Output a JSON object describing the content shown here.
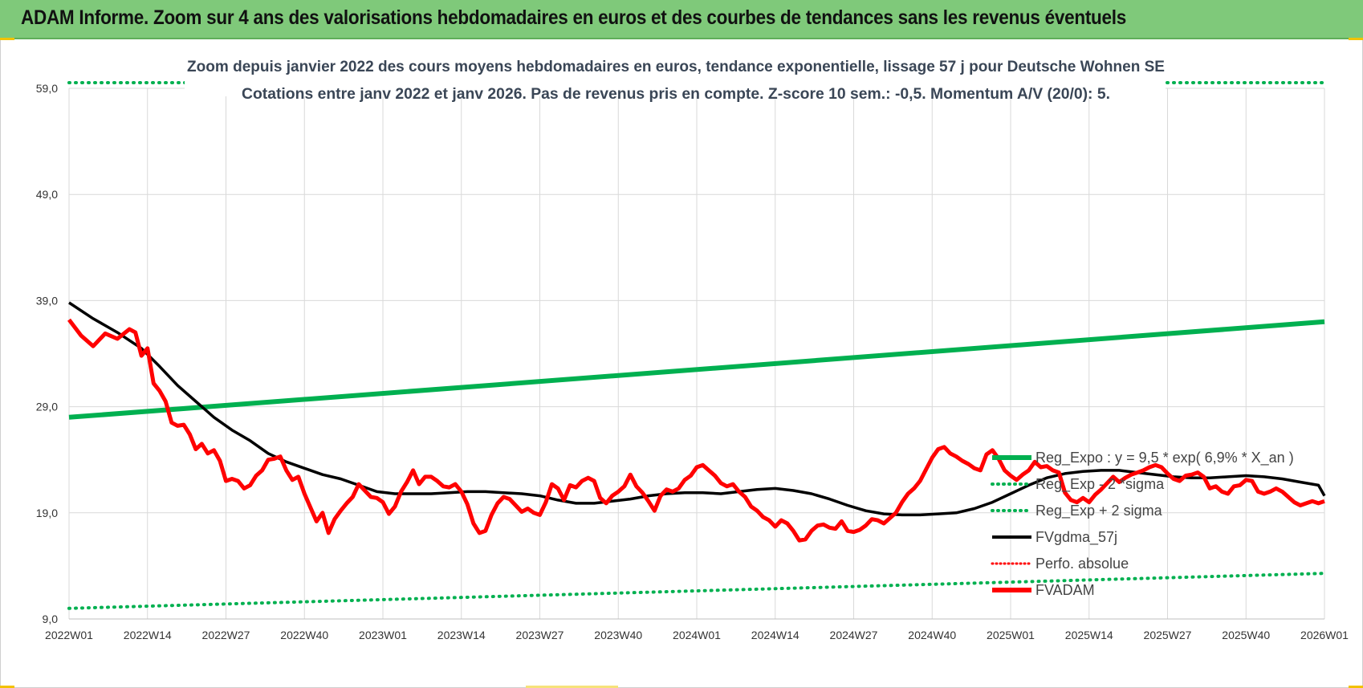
{
  "banner": {
    "title": "ADAM Informe. Zoom sur 4 ans des valorisations hebdomadaires en euros et des courbes de tendances sans les revenus éventuels"
  },
  "colors": {
    "banner_bg": "#7fc97a",
    "reg_expo": "#00b050",
    "fvgdma": "#000000",
    "fvadam": "#ff0000",
    "perfo": "#ff0000",
    "grid": "#d9d9d9"
  },
  "chart_data": {
    "type": "line",
    "title_line1": "Zoom depuis janvier 2022 des cours moyens hebdomadaires en euros, tendance exponentielle, lissage 57 j pour Deutsche Wohnen SE",
    "title_line2": "Cotations entre janv 2022 et janv 2026. Pas de revenus pris en compte. Z-score 10 sem.: -0,5. Momentum A/V (20/0): 5.",
    "ylim": [
      9,
      59
    ],
    "y_ticks": [
      "9,0",
      "19,0",
      "29,0",
      "39,0",
      "49,0",
      "59,0"
    ],
    "y_tick_values": [
      9,
      19,
      29,
      39,
      49,
      59
    ],
    "x_ticks": [
      "2022W01",
      "2022W14",
      "2022W27",
      "2022W40",
      "2023W01",
      "2023W14",
      "2023W27",
      "2023W40",
      "2024W01",
      "2024W14",
      "2024W27",
      "2024W40",
      "2025W01",
      "2025W14",
      "2025W27",
      "2025W40",
      "2026W01"
    ],
    "x_tick_weeks": [
      0,
      13,
      26,
      39,
      52,
      65,
      78,
      91,
      104,
      117,
      130,
      143,
      156,
      169,
      182,
      195,
      208
    ],
    "x_max_week": 208,
    "legend": [
      {
        "name": "Reg_Expo : y = 9,5 * exp( 6,9% *  X_an )",
        "style": "solid-green"
      },
      {
        "name": "Reg_Exp - 2 *sigma",
        "style": "dotted-green"
      },
      {
        "name": "Reg_Exp + 2 sigma",
        "style": "dotted-green"
      },
      {
        "name": "FVgdma_57j",
        "style": "solid-black"
      },
      {
        "name": "Perfo. absolue",
        "style": "dotted-red"
      },
      {
        "name": "FVADAM",
        "style": "solid-red"
      }
    ],
    "series": [
      {
        "name": "Reg_Expo",
        "points": [
          [
            0,
            28.0
          ],
          [
            208,
            37.0
          ]
        ]
      },
      {
        "name": "Reg_Exp - 2 *sigma",
        "points": [
          [
            0,
            10.0
          ],
          [
            208,
            13.3
          ]
        ]
      },
      {
        "name": "Reg_Exp + 2 sigma",
        "points": [
          [
            0,
            60.0
          ],
          [
            208,
            60.0
          ]
        ]
      },
      {
        "name": "FVgdma_57j",
        "points": [
          [
            0,
            38.8
          ],
          [
            4,
            37.3
          ],
          [
            8,
            36.0
          ],
          [
            12,
            34.5
          ],
          [
            15,
            32.8
          ],
          [
            18,
            31.0
          ],
          [
            21,
            29.5
          ],
          [
            24,
            28.0
          ],
          [
            27,
            26.8
          ],
          [
            30,
            25.8
          ],
          [
            33,
            24.6
          ],
          [
            36,
            23.8
          ],
          [
            39,
            23.2
          ],
          [
            42,
            22.6
          ],
          [
            45,
            22.2
          ],
          [
            48,
            21.6
          ],
          [
            51,
            21.0
          ],
          [
            54,
            20.8
          ],
          [
            57,
            20.8
          ],
          [
            60,
            20.8
          ],
          [
            63,
            20.9
          ],
          [
            66,
            21.0
          ],
          [
            69,
            21.0
          ],
          [
            72,
            20.9
          ],
          [
            75,
            20.8
          ],
          [
            78,
            20.6
          ],
          [
            81,
            20.2
          ],
          [
            84,
            19.9
          ],
          [
            87,
            19.9
          ],
          [
            90,
            20.1
          ],
          [
            93,
            20.3
          ],
          [
            96,
            20.6
          ],
          [
            99,
            20.8
          ],
          [
            102,
            20.9
          ],
          [
            105,
            20.9
          ],
          [
            108,
            20.8
          ],
          [
            111,
            21.0
          ],
          [
            114,
            21.2
          ],
          [
            117,
            21.3
          ],
          [
            120,
            21.1
          ],
          [
            123,
            20.8
          ],
          [
            126,
            20.3
          ],
          [
            129,
            19.7
          ],
          [
            132,
            19.2
          ],
          [
            135,
            18.9
          ],
          [
            138,
            18.8
          ],
          [
            141,
            18.8
          ],
          [
            144,
            18.9
          ],
          [
            147,
            19.0
          ],
          [
            150,
            19.4
          ],
          [
            153,
            20.0
          ],
          [
            156,
            20.8
          ],
          [
            159,
            21.6
          ],
          [
            162,
            22.3
          ],
          [
            165,
            22.7
          ],
          [
            168,
            22.9
          ],
          [
            171,
            23.0
          ],
          [
            174,
            23.0
          ],
          [
            177,
            22.8
          ],
          [
            180,
            22.6
          ],
          [
            183,
            22.4
          ],
          [
            186,
            22.3
          ],
          [
            189,
            22.3
          ],
          [
            192,
            22.4
          ],
          [
            195,
            22.5
          ],
          [
            198,
            22.4
          ],
          [
            201,
            22.2
          ],
          [
            204,
            21.9
          ],
          [
            207,
            21.6
          ],
          [
            208,
            20.6
          ]
        ]
      },
      {
        "name": "FVADAM",
        "points": [
          [
            0,
            37.2
          ],
          [
            2,
            35.7
          ],
          [
            4,
            34.7
          ],
          [
            6,
            35.9
          ],
          [
            8,
            35.4
          ],
          [
            10,
            36.3
          ],
          [
            11,
            36.0
          ],
          [
            12,
            33.8
          ],
          [
            13,
            34.5
          ],
          [
            14,
            31.2
          ],
          [
            15,
            30.5
          ],
          [
            16,
            29.5
          ],
          [
            17,
            27.5
          ],
          [
            18,
            27.2
          ],
          [
            19,
            27.3
          ],
          [
            20,
            26.4
          ],
          [
            21,
            25.0
          ],
          [
            22,
            25.5
          ],
          [
            23,
            24.6
          ],
          [
            24,
            24.9
          ],
          [
            25,
            23.9
          ],
          [
            26,
            22.0
          ],
          [
            27,
            22.2
          ],
          [
            28,
            22.0
          ],
          [
            29,
            21.3
          ],
          [
            30,
            21.6
          ],
          [
            31,
            22.5
          ],
          [
            32,
            23.0
          ],
          [
            33,
            24.0
          ],
          [
            34,
            24.1
          ],
          [
            35,
            24.3
          ],
          [
            36,
            23.0
          ],
          [
            37,
            22.1
          ],
          [
            38,
            22.4
          ],
          [
            39,
            20.8
          ],
          [
            40,
            19.5
          ],
          [
            41,
            18.2
          ],
          [
            42,
            19.0
          ],
          [
            43,
            17.1
          ],
          [
            44,
            18.4
          ],
          [
            45,
            19.2
          ],
          [
            46,
            19.9
          ],
          [
            47,
            20.5
          ],
          [
            48,
            21.7
          ],
          [
            49,
            21.1
          ],
          [
            50,
            20.5
          ],
          [
            51,
            20.4
          ],
          [
            52,
            20.0
          ],
          [
            53,
            18.9
          ],
          [
            54,
            19.6
          ],
          [
            55,
            21.0
          ],
          [
            56,
            21.9
          ],
          [
            57,
            23.0
          ],
          [
            58,
            21.7
          ],
          [
            59,
            22.4
          ],
          [
            60,
            22.4
          ],
          [
            61,
            22.0
          ],
          [
            62,
            21.5
          ],
          [
            63,
            21.4
          ],
          [
            64,
            21.7
          ],
          [
            65,
            21.0
          ],
          [
            66,
            19.8
          ],
          [
            67,
            18.0
          ],
          [
            68,
            17.1
          ],
          [
            69,
            17.3
          ],
          [
            70,
            18.8
          ],
          [
            71,
            19.9
          ],
          [
            72,
            20.5
          ],
          [
            73,
            20.3
          ],
          [
            74,
            19.7
          ],
          [
            75,
            19.1
          ],
          [
            76,
            19.4
          ],
          [
            77,
            19.0
          ],
          [
            78,
            18.8
          ],
          [
            79,
            20.0
          ],
          [
            80,
            21.7
          ],
          [
            81,
            21.3
          ],
          [
            82,
            20.2
          ],
          [
            83,
            21.6
          ],
          [
            84,
            21.4
          ],
          [
            85,
            22.0
          ],
          [
            86,
            22.3
          ],
          [
            87,
            22.0
          ],
          [
            88,
            20.4
          ],
          [
            89,
            19.9
          ],
          [
            90,
            20.6
          ],
          [
            91,
            21.0
          ],
          [
            92,
            21.5
          ],
          [
            93,
            22.6
          ],
          [
            94,
            21.5
          ],
          [
            95,
            20.9
          ],
          [
            96,
            20.1
          ],
          [
            97,
            19.2
          ],
          [
            98,
            20.6
          ],
          [
            99,
            21.2
          ],
          [
            100,
            21.0
          ],
          [
            101,
            21.3
          ],
          [
            102,
            22.1
          ],
          [
            103,
            22.5
          ],
          [
            104,
            23.3
          ],
          [
            105,
            23.5
          ],
          [
            106,
            23.0
          ],
          [
            107,
            22.5
          ],
          [
            108,
            21.8
          ],
          [
            109,
            21.5
          ],
          [
            110,
            21.7
          ],
          [
            111,
            21.0
          ],
          [
            112,
            20.5
          ],
          [
            113,
            19.6
          ],
          [
            114,
            19.2
          ],
          [
            115,
            18.6
          ],
          [
            116,
            18.3
          ],
          [
            117,
            17.7
          ],
          [
            118,
            18.3
          ],
          [
            119,
            18.0
          ],
          [
            120,
            17.3
          ],
          [
            121,
            16.4
          ],
          [
            122,
            16.5
          ],
          [
            123,
            17.3
          ],
          [
            124,
            17.8
          ],
          [
            125,
            17.9
          ],
          [
            126,
            17.6
          ],
          [
            127,
            17.5
          ],
          [
            128,
            18.2
          ],
          [
            129,
            17.3
          ],
          [
            130,
            17.2
          ],
          [
            131,
            17.4
          ],
          [
            132,
            17.8
          ],
          [
            133,
            18.4
          ],
          [
            134,
            18.3
          ],
          [
            135,
            18.0
          ],
          [
            136,
            18.5
          ],
          [
            137,
            19.0
          ],
          [
            138,
            20.0
          ],
          [
            139,
            20.8
          ],
          [
            140,
            21.3
          ],
          [
            141,
            22.0
          ],
          [
            142,
            23.1
          ],
          [
            143,
            24.2
          ],
          [
            144,
            25.0
          ],
          [
            145,
            25.2
          ],
          [
            146,
            24.6
          ],
          [
            147,
            24.3
          ],
          [
            148,
            23.9
          ],
          [
            149,
            23.6
          ],
          [
            150,
            23.2
          ],
          [
            151,
            23.0
          ],
          [
            152,
            24.5
          ],
          [
            153,
            24.9
          ],
          [
            154,
            24.1
          ],
          [
            155,
            23.0
          ],
          [
            156,
            22.5
          ],
          [
            157,
            22.1
          ],
          [
            158,
            22.6
          ],
          [
            159,
            23.0
          ],
          [
            160,
            23.8
          ],
          [
            161,
            23.3
          ],
          [
            162,
            23.4
          ],
          [
            163,
            23.0
          ],
          [
            164,
            22.8
          ],
          [
            165,
            20.9
          ],
          [
            166,
            20.2
          ],
          [
            167,
            20.0
          ],
          [
            168,
            20.4
          ],
          [
            169,
            20.0
          ],
          [
            170,
            20.7
          ],
          [
            171,
            21.2
          ],
          [
            172,
            21.8
          ],
          [
            173,
            22.4
          ],
          [
            174,
            21.9
          ],
          [
            175,
            22.3
          ],
          [
            176,
            22.6
          ],
          [
            177,
            22.8
          ],
          [
            178,
            23.0
          ],
          [
            179,
            23.3
          ],
          [
            180,
            23.5
          ],
          [
            181,
            23.3
          ],
          [
            182,
            22.7
          ],
          [
            183,
            22.2
          ],
          [
            184,
            22.0
          ],
          [
            185,
            22.5
          ],
          [
            186,
            22.6
          ],
          [
            187,
            22.8
          ],
          [
            188,
            22.4
          ],
          [
            189,
            21.3
          ],
          [
            190,
            21.5
          ],
          [
            191,
            21.0
          ],
          [
            192,
            20.8
          ],
          [
            193,
            21.5
          ],
          [
            194,
            21.6
          ],
          [
            195,
            22.1
          ],
          [
            196,
            22.0
          ],
          [
            197,
            21.0
          ],
          [
            198,
            20.8
          ],
          [
            199,
            21.0
          ],
          [
            200,
            21.3
          ],
          [
            201,
            21.0
          ],
          [
            202,
            20.5
          ],
          [
            203,
            20.0
          ],
          [
            204,
            19.7
          ],
          [
            205,
            19.9
          ],
          [
            206,
            20.1
          ],
          [
            207,
            19.9
          ],
          [
            208,
            20.1
          ]
        ]
      }
    ]
  }
}
